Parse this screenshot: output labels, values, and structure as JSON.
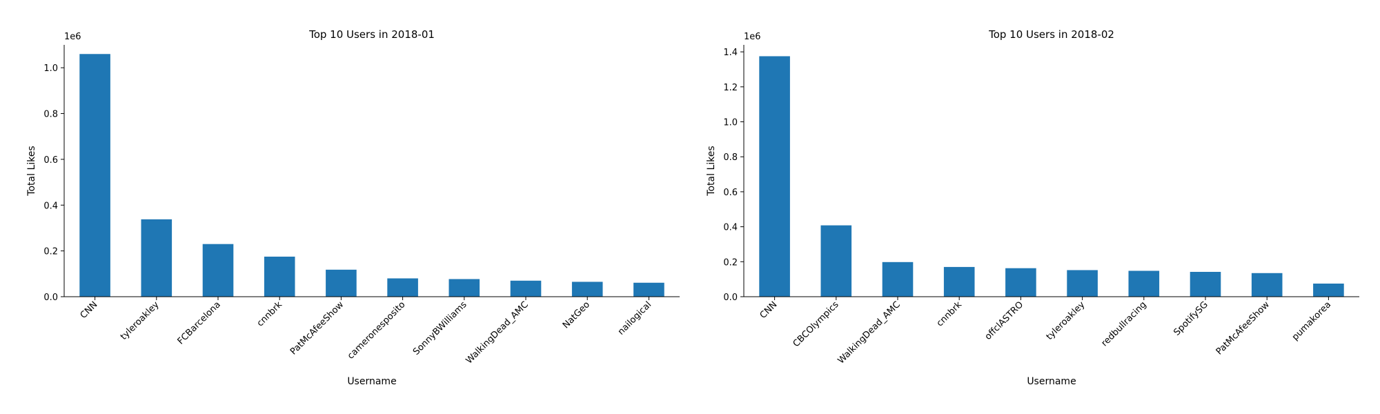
{
  "chart_data": [
    {
      "type": "bar",
      "title": "Top 10 Users in 2018-01",
      "xlabel": "Username",
      "ylabel": "Total Likes",
      "y_offset_label": "1e6",
      "ylim": [
        0,
        1100000
      ],
      "yticks": [
        0,
        200000,
        400000,
        600000,
        800000,
        1000000
      ],
      "ytick_labels": [
        "0.0",
        "0.2",
        "0.4",
        "0.6",
        "0.8",
        "1.0"
      ],
      "categories": [
        "CNN",
        "tyleroakley",
        "FCBarcelona",
        "cnnbrk",
        "PatMcAfeeShow",
        "cameronesposito",
        "SonnyBWilliams",
        "WalkingDead_AMC",
        "NatGeo",
        "nailogical"
      ],
      "values": [
        1060000,
        338000,
        230000,
        175000,
        118000,
        80000,
        77000,
        70000,
        65000,
        61000
      ],
      "bar_color": "#1f77b4",
      "grid": false,
      "legend": "none"
    },
    {
      "type": "bar",
      "title": "Top 10 Users in 2018-02",
      "xlabel": "Username",
      "ylabel": "Total Likes",
      "y_offset_label": "1e6",
      "ylim": [
        0,
        1440000
      ],
      "yticks": [
        0,
        200000,
        400000,
        600000,
        800000,
        1000000,
        1200000,
        1400000
      ],
      "ytick_labels": [
        "0.0",
        "0.2",
        "0.4",
        "0.6",
        "0.8",
        "1.0",
        "1.2",
        "1.4"
      ],
      "categories": [
        "CNN",
        "CBCOlympics",
        "WalkingDead_AMC",
        "cnnbrk",
        "offclASTRO",
        "tyleroakley",
        "redbullracing",
        "SpotifySG",
        "PatMcAfeeShow",
        "pumakorea"
      ],
      "values": [
        1375000,
        408000,
        198000,
        170000,
        163000,
        152000,
        148000,
        142000,
        135000,
        75000
      ],
      "bar_color": "#1f77b4",
      "grid": false,
      "legend": "none"
    }
  ]
}
